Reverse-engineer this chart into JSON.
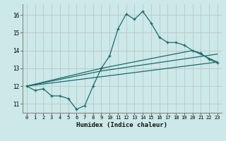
{
  "xlabel": "Humidex (Indice chaleur)",
  "bg_color": "#cce8e8",
  "grid_color": "#b8c8c8",
  "line_color": "#1a6b6b",
  "xlim": [
    -0.5,
    23.5
  ],
  "ylim": [
    10.5,
    16.6
  ],
  "yticks": [
    11,
    12,
    13,
    14,
    15,
    16
  ],
  "xticks": [
    0,
    1,
    2,
    3,
    4,
    5,
    6,
    7,
    8,
    9,
    10,
    11,
    12,
    13,
    14,
    15,
    16,
    17,
    18,
    19,
    20,
    21,
    22,
    23
  ],
  "line1_x": [
    0,
    1,
    2,
    3,
    4,
    5,
    6,
    7,
    8,
    9,
    10,
    11,
    12,
    13,
    14,
    15,
    16,
    17,
    18,
    19,
    20,
    21,
    22,
    23
  ],
  "line1_y": [
    12.0,
    11.75,
    11.85,
    11.45,
    11.45,
    11.3,
    10.7,
    10.9,
    12.0,
    13.0,
    13.7,
    15.2,
    16.05,
    15.75,
    16.2,
    15.55,
    14.75,
    14.45,
    14.45,
    14.3,
    14.0,
    13.85,
    13.5,
    13.3
  ],
  "line2_x": [
    0,
    23
  ],
  "line2_y": [
    12.0,
    13.35
  ],
  "line3_x": [
    0,
    9,
    23
  ],
  "line3_y": [
    12.0,
    12.85,
    13.8
  ],
  "line4_x": [
    0,
    9,
    20,
    23
  ],
  "line4_y": [
    12.0,
    13.0,
    14.0,
    13.35
  ]
}
